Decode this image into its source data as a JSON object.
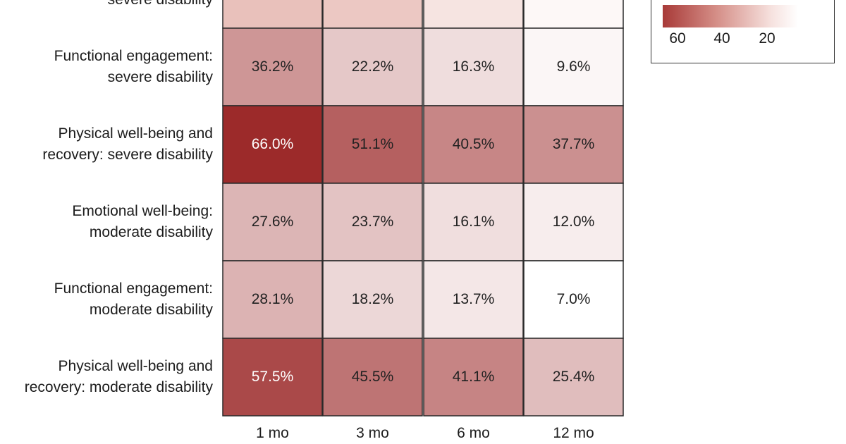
{
  "chart_data": {
    "type": "heatmap",
    "columns": [
      "1 mo",
      "3 mo",
      "6 mo",
      "12 mo"
    ],
    "rows": [
      {
        "label_lines": [
          "",
          "severe disability"
        ],
        "values": [
          null,
          null,
          null,
          null
        ],
        "labels": [
          "",
          "",
          "",
          ""
        ],
        "partial": true
      },
      {
        "label_lines": [
          "Functional engagement:",
          "severe disability"
        ],
        "values": [
          36.2,
          22.2,
          16.3,
          9.6
        ],
        "labels": [
          "36.2%",
          "22.2%",
          "16.3%",
          "9.6%"
        ]
      },
      {
        "label_lines": [
          "Physical well-being and",
          "recovery: severe disability"
        ],
        "values": [
          66.0,
          51.1,
          40.5,
          37.7
        ],
        "labels": [
          "66.0%",
          "51.1%",
          "40.5%",
          "37.7%"
        ]
      },
      {
        "label_lines": [
          "Emotional well-being:",
          "moderate disability"
        ],
        "values": [
          27.6,
          23.7,
          16.1,
          12.0
        ],
        "labels": [
          "27.6%",
          "23.7%",
          "16.1%",
          "12.0%"
        ]
      },
      {
        "label_lines": [
          "Functional engagement:",
          "moderate disability"
        ],
        "values": [
          28.1,
          18.2,
          13.7,
          7.0
        ],
        "labels": [
          "28.1%",
          "18.2%",
          "13.7%",
          "7.0%"
        ]
      },
      {
        "label_lines": [
          "Physical well-being and",
          "recovery: moderate disability"
        ],
        "values": [
          57.5,
          45.5,
          41.1,
          25.4
        ],
        "labels": [
          "57.5%",
          "45.5%",
          "41.1%",
          "25.4%"
        ]
      }
    ],
    "partial_row_colors": [
      "#e9c1bb",
      "#ecc8c3",
      "#f6e4e1",
      "#fdf8f7"
    ],
    "color_scale": {
      "min": 7.0,
      "max": 66.0,
      "low_color": "#ffffff",
      "high_color": "#9c2a2a"
    },
    "legend": {
      "position": "top-right",
      "ticks": [
        "60",
        "40",
        "20"
      ]
    }
  }
}
